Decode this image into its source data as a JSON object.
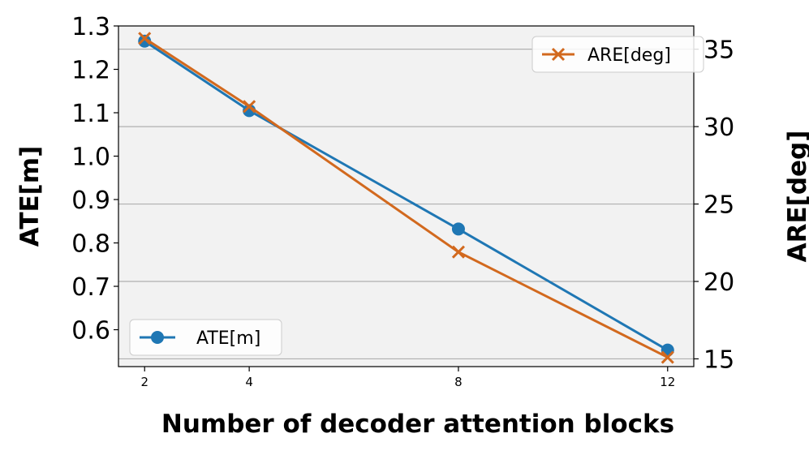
{
  "chart_data": {
    "type": "line",
    "title": "",
    "xlabel": "Number of decoder attention blocks",
    "ylabel_left": "ATE[m]",
    "ylabel_right": "ARE[deg]",
    "x": [
      2,
      4,
      8,
      12
    ],
    "x_ticks": [
      "2",
      "4",
      "8",
      "12"
    ],
    "xlim": [
      1.5,
      12.5
    ],
    "ylim_left": [
      0.515,
      1.3
    ],
    "ylim_right": [
      14.5,
      36.5
    ],
    "y_ticks_left": [
      "0.6",
      "0.7",
      "0.8",
      "0.9",
      "1.0",
      "1.1",
      "1.2",
      "1.3"
    ],
    "y_ticks_right": [
      "15",
      "20",
      "25",
      "30",
      "35"
    ],
    "grid": "horizontal lines at right-axis ticks",
    "plot_background": "#f2f2f2",
    "series": [
      {
        "name": "ATE[m]",
        "axis": "left",
        "marker": "circle",
        "color": "#1f77b4",
        "values": [
          1.265,
          1.105,
          0.832,
          0.553
        ],
        "legend_position": "lower-left"
      },
      {
        "name": "ARE[deg]",
        "axis": "right",
        "marker": "x",
        "color": "#d2691e",
        "values": [
          35.7,
          31.3,
          21.9,
          15.1
        ],
        "legend_position": "upper-right"
      }
    ]
  }
}
